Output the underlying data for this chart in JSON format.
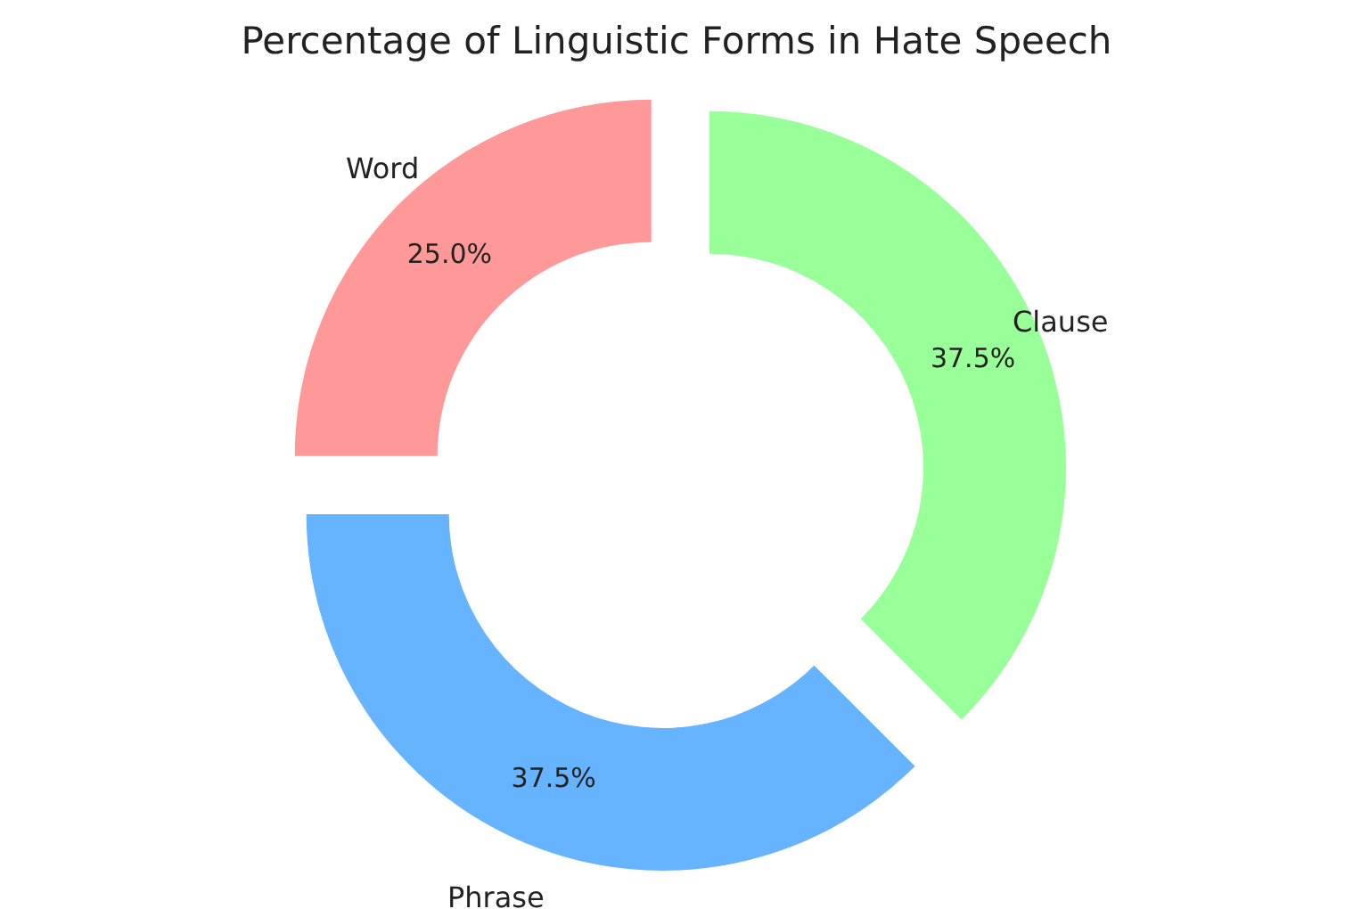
{
  "chart_data": {
    "type": "donut",
    "title": "Percentage of Linguistic Forms in Hate Speech",
    "categories": [
      "Word",
      "Phrase",
      "Clause"
    ],
    "values": [
      25.0,
      37.5,
      37.5
    ],
    "colors": [
      "#ff9999",
      "#66b3ff",
      "#99ff99"
    ],
    "value_labels": [
      "25.0%",
      "37.5%",
      "37.5%"
    ],
    "legend": false
  }
}
